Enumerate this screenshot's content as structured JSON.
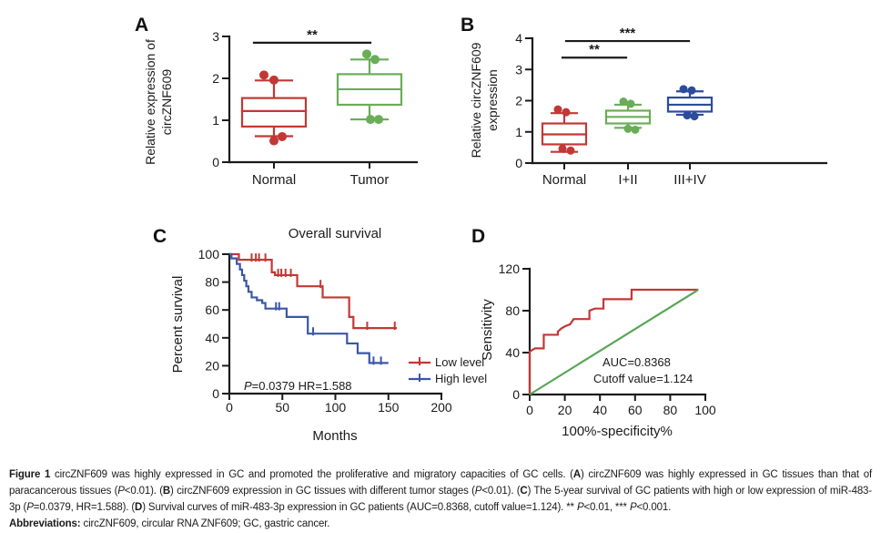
{
  "figure": {
    "panels": {
      "a": {
        "letter": "A"
      },
      "b": {
        "letter": "B"
      },
      "c": {
        "letter": "C"
      },
      "d": {
        "letter": "D"
      }
    }
  },
  "colors": {
    "red": "#c23835",
    "green": "#6aad58",
    "blue": "#2b4b9c",
    "km_blue": "#3a57a7",
    "roc_green": "#58a656",
    "axis": "#1b1b1b"
  },
  "chart_data": [
    {
      "id": "A",
      "type": "box",
      "ylabel_lines": [
        "Relative expression of",
        "circZNF609"
      ],
      "ylim": [
        0,
        3
      ],
      "yticks": [
        0,
        1,
        2,
        3
      ],
      "categories": [
        "Normal",
        "Tumor"
      ],
      "boxes": [
        {
          "category": "Normal",
          "color": "#c23835",
          "whisker_low": 0.62,
          "q1": 0.85,
          "median": 1.22,
          "q3": 1.53,
          "whisker_high": 1.95,
          "points": [
            [
              -11,
              2.08
            ],
            [
              0,
              1.96
            ],
            [
              0,
              0.51
            ],
            [
              9,
              0.61
            ]
          ]
        },
        {
          "category": "Tumor",
          "color": "#6aad58",
          "whisker_low": 1.02,
          "q1": 1.37,
          "median": 1.74,
          "q3": 2.1,
          "whisker_high": 2.45,
          "points": [
            [
              -3,
              2.58
            ],
            [
              6,
              2.45
            ],
            [
              1,
              1.02
            ],
            [
              10,
              1.02
            ]
          ]
        }
      ],
      "significance": [
        {
          "from": 0,
          "to": 1,
          "bar_y": 2.85,
          "stars": "**"
        }
      ]
    },
    {
      "id": "B",
      "type": "box",
      "ylabel_lines": [
        "Relative circZNF609",
        "expression"
      ],
      "ylim": [
        0,
        4
      ],
      "yticks": [
        0,
        1,
        2,
        3,
        4
      ],
      "categories": [
        "Normal",
        "I+II",
        "III+IV"
      ],
      "boxes": [
        {
          "category": "Normal",
          "color": "#c23835",
          "whisker_low": 0.36,
          "q1": 0.6,
          "median": 0.92,
          "q3": 1.27,
          "whisker_high": 1.6,
          "points": [
            [
              -7,
              1.72
            ],
            [
              2,
              1.63
            ],
            [
              -2,
              0.46
            ],
            [
              7,
              0.4
            ]
          ]
        },
        {
          "category": "I+II",
          "color": "#6aad58",
          "whisker_low": 1.13,
          "q1": 1.27,
          "median": 1.48,
          "q3": 1.68,
          "whisker_high": 1.87,
          "points": [
            [
              -5,
              1.97
            ],
            [
              3,
              1.9
            ],
            [
              0,
              1.1
            ],
            [
              8,
              1.07
            ]
          ]
        },
        {
          "category": "III+IV",
          "color": "#2b4b9c",
          "whisker_low": 1.55,
          "q1": 1.65,
          "median": 1.87,
          "q3": 2.1,
          "whisker_high": 2.3,
          "points": [
            [
              -7,
              2.37
            ],
            [
              2,
              2.33
            ],
            [
              -3,
              1.53
            ],
            [
              5,
              1.5
            ]
          ]
        }
      ],
      "significance": [
        {
          "from": 0,
          "to": 1,
          "bar_y": 3.38,
          "stars": "**"
        },
        {
          "from": 0,
          "to": 2,
          "bar_y": 3.91,
          "stars": "***"
        }
      ]
    },
    {
      "id": "C",
      "type": "km",
      "title": "Overall survival",
      "xlabel": "Months",
      "ylabel": "Percent survival",
      "xlim": [
        0,
        200
      ],
      "ylim": [
        0,
        100
      ],
      "xticks": [
        0,
        50,
        100,
        150,
        200
      ],
      "yticks": [
        0,
        20,
        40,
        60,
        80,
        100
      ],
      "annotation_segments": [
        {
          "text": "P",
          "italic": true
        },
        {
          "text": "=0.0379  HR=1.588"
        }
      ],
      "series": [
        {
          "name": "Low level",
          "color": "#c23835",
          "steps": [
            [
              0,
              100
            ],
            [
              9,
              96
            ],
            [
              40,
              87
            ],
            [
              43,
              85
            ],
            [
              64,
              77
            ],
            [
              88,
              69
            ],
            [
              113,
              55
            ],
            [
              117,
              47
            ],
            [
              158,
              47
            ]
          ],
          "censors": [
            [
              21,
              96
            ],
            [
              25,
              96
            ],
            [
              28,
              96
            ],
            [
              34,
              96
            ],
            [
              46,
              85
            ],
            [
              49,
              85
            ],
            [
              53,
              85
            ],
            [
              58,
              85
            ],
            [
              86,
              77
            ],
            [
              130,
              47
            ],
            [
              156,
              47
            ]
          ]
        },
        {
          "name": "High level",
          "color": "#3a57a7",
          "steps": [
            [
              0,
              100
            ],
            [
              2,
              97
            ],
            [
              7,
              93
            ],
            [
              10,
              89
            ],
            [
              12,
              85
            ],
            [
              14,
              81
            ],
            [
              16,
              77
            ],
            [
              18,
              73
            ],
            [
              21,
              69
            ],
            [
              26,
              67
            ],
            [
              31,
              65
            ],
            [
              34,
              61
            ],
            [
              54,
              55
            ],
            [
              74,
              43
            ],
            [
              111,
              36
            ],
            [
              121,
              29
            ],
            [
              132,
              22
            ],
            [
              150,
              22
            ]
          ],
          "censors": [
            [
              44,
              61
            ],
            [
              47,
              61
            ],
            [
              79,
              43
            ],
            [
              136,
              22
            ],
            [
              143,
              22
            ]
          ]
        }
      ],
      "legend": {
        "entries": [
          {
            "label": "Low level",
            "color": "#c23835"
          },
          {
            "label": "High level",
            "color": "#3a57a7"
          }
        ]
      }
    },
    {
      "id": "D",
      "type": "roc",
      "xlabel": "100%-specificity%",
      "ylabel": "Sensitivity",
      "xlim": [
        0,
        100
      ],
      "ylim": [
        0,
        120
      ],
      "xticks": [
        0,
        20,
        40,
        60,
        80,
        100
      ],
      "yticks": [
        0,
        40,
        80,
        120
      ],
      "annotations": [
        "AUC=0.8368",
        "Cutoff value=1.124"
      ],
      "series": [
        {
          "name": "roc-curve",
          "color": "#c23835",
          "points": [
            [
              0,
              0
            ],
            [
              0,
              41
            ],
            [
              3,
              44
            ],
            [
              8,
              44
            ],
            [
              8,
              57
            ],
            [
              16,
              57
            ],
            [
              16,
              60
            ],
            [
              18,
              63
            ],
            [
              20,
              65
            ],
            [
              23,
              67
            ],
            [
              25,
              72
            ],
            [
              34,
              72
            ],
            [
              34,
              80
            ],
            [
              37,
              82
            ],
            [
              42,
              82
            ],
            [
              42,
              91
            ],
            [
              58,
              91
            ],
            [
              58,
              100
            ],
            [
              96,
              100
            ]
          ]
        },
        {
          "name": "reference-line",
          "color": "#58a656",
          "points": [
            [
              0,
              0
            ],
            [
              96,
              100
            ]
          ]
        }
      ]
    }
  ],
  "caption": {
    "main": [
      {
        "text": "Figure 1 ",
        "bold": true
      },
      {
        "text": "circZNF609 was highly expressed in GC and promoted the proliferative and migratory capacities of GC cells. ("
      },
      {
        "text": "A",
        "bold": true
      },
      {
        "text": ") circZNF609 was highly expressed in GC tissues than that of paracancerous tissues ("
      },
      {
        "text": "P",
        "italic": true
      },
      {
        "text": "<0.01). ("
      },
      {
        "text": "B",
        "bold": true
      },
      {
        "text": ") circZNF609 expression in GC tissues with different tumor stages ("
      },
      {
        "text": "P",
        "italic": true
      },
      {
        "text": "<0.01). ("
      },
      {
        "text": "C",
        "bold": true
      },
      {
        "text": ") The 5-year survival of GC patients with high or low expression of miR-483-3p ("
      },
      {
        "text": "P",
        "italic": true
      },
      {
        "text": "=0.0379, HR=1.588). ("
      },
      {
        "text": "D",
        "bold": true
      },
      {
        "text": ") Survival curves of miR-483-3p expression in GC patients (AUC=0.8368, cutoff value=1.124). ** "
      },
      {
        "text": "P",
        "italic": true
      },
      {
        "text": "<0.01, *** "
      },
      {
        "text": "P",
        "italic": true
      },
      {
        "text": "<0.001."
      }
    ],
    "abbreviations": [
      {
        "text": "Abbreviations: ",
        "bold": true
      },
      {
        "text": "circZNF609, circular RNA ZNF609; GC, gastric cancer."
      }
    ]
  }
}
